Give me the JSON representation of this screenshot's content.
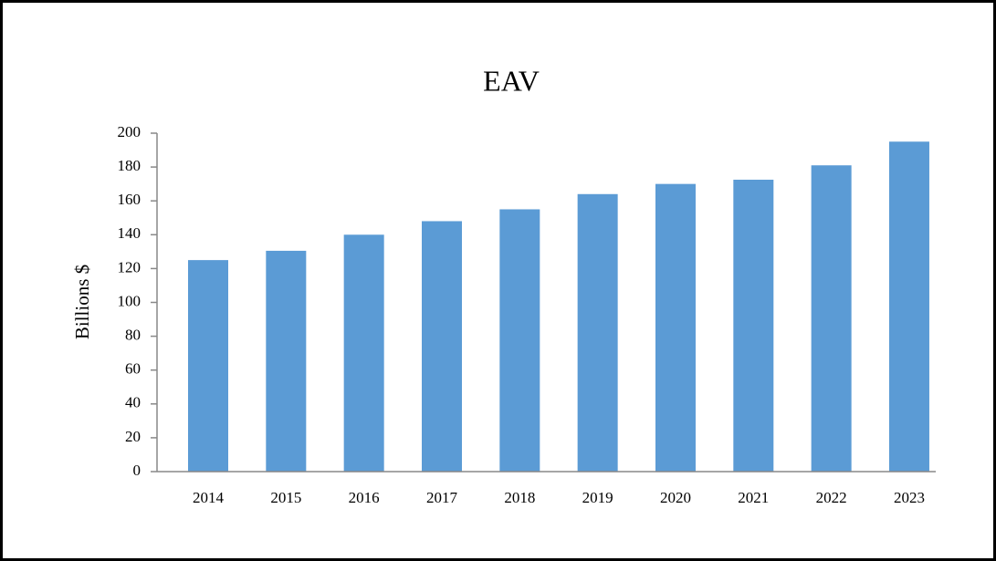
{
  "chart_data": {
    "type": "bar",
    "title": "EAV",
    "y_label": "Billions $",
    "categories": [
      "2014",
      "2015",
      "2016",
      "2017",
      "2018",
      "2019",
      "2020",
      "2021",
      "2022",
      "2023"
    ],
    "values": [
      125,
      130.5,
      140,
      148,
      155,
      164,
      170,
      172.5,
      181,
      195
    ],
    "color": "#5b9bd5",
    "ylim": [
      0,
      200
    ],
    "yticks": [
      0,
      20,
      40,
      60,
      80,
      100,
      120,
      140,
      160,
      180,
      200
    ],
    "grid": false
  }
}
